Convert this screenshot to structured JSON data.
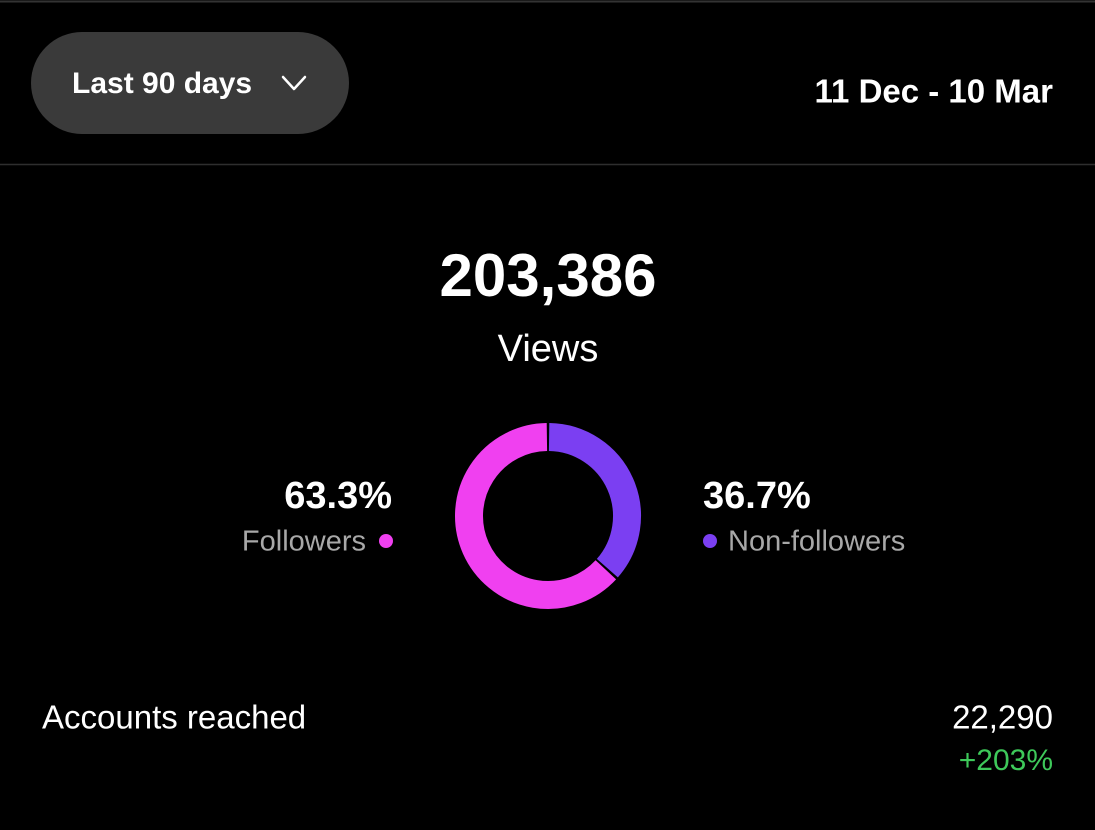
{
  "header": {
    "period": "Last 90 days",
    "date_range": "11 Dec - 10 Mar"
  },
  "summary": {
    "total": "203,386",
    "label": "Views"
  },
  "chart_data": {
    "type": "pie",
    "categories": [
      "Followers",
      "Non-followers"
    ],
    "values": [
      63.3,
      36.7
    ],
    "value_labels": [
      "63.3%",
      "36.7%"
    ],
    "colors": [
      "#f040f0",
      "#7b3ff2"
    ]
  },
  "metrics": [
    {
      "label": "Accounts reached",
      "value": "22,290",
      "change": "+203%"
    }
  ]
}
